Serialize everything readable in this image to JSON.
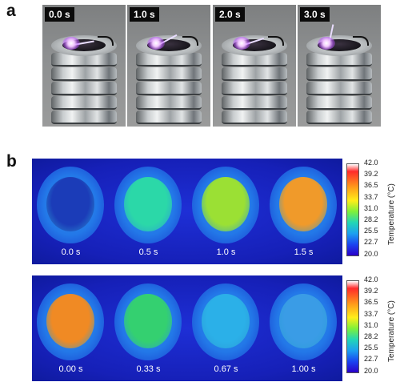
{
  "panel_a": {
    "letter": "a",
    "frames": [
      {
        "time": "0.0 s"
      },
      {
        "time": "1.0 s"
      },
      {
        "time": "2.0 s"
      },
      {
        "time": "3.0 s"
      }
    ]
  },
  "panel_b": {
    "letter": "b",
    "heating": {
      "times": [
        "0.0 s",
        "0.5 s",
        "1.0 s",
        "1.5 s"
      ],
      "sample_colors": [
        "#1b3cb8",
        "#2bd8a8",
        "#9be034",
        "#f09a2a"
      ]
    },
    "cooling": {
      "times": [
        "0.00 s",
        "0.33 s",
        "0.67 s",
        "1.00 s"
      ],
      "sample_colors": [
        "#f08a24",
        "#34d070",
        "#2bb0e8",
        "#3a9ce6"
      ]
    },
    "colorbar": {
      "title": "Temperature (°C)",
      "ticks": [
        "42.0",
        "39.2",
        "36.5",
        "33.7",
        "31.0",
        "28.2",
        "25.5",
        "22.7",
        "20.0"
      ]
    }
  }
}
